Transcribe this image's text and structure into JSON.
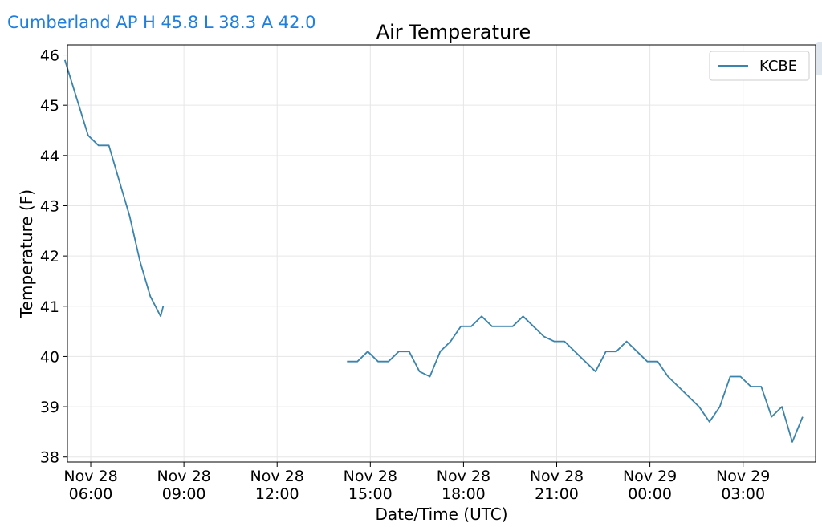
{
  "header": {
    "station_summary": "Cumberland AP H 45.8 L 38.3 A 42.0"
  },
  "colors": {
    "line": "#3a84ad",
    "grid": "#e6e6e6",
    "link": "#1f7fe0"
  },
  "chart_data": {
    "type": "line",
    "title": "Air Temperature",
    "xlabel": "Date/Time (UTC)",
    "ylabel": "Temperature (F)",
    "grid": true,
    "legend_position": "top-right",
    "ylim": [
      37.9,
      46.2
    ],
    "xlim": [
      "2020-11-28T05:15",
      "2020-11-29T05:20"
    ],
    "x_ticks": [
      {
        "line1": "Nov 28",
        "line2": "06:00",
        "at": "2020-11-28T06:00"
      },
      {
        "line1": "Nov 28",
        "line2": "09:00",
        "at": "2020-11-28T09:00"
      },
      {
        "line1": "Nov 28",
        "line2": "12:00",
        "at": "2020-11-28T12:00"
      },
      {
        "line1": "Nov 28",
        "line2": "15:00",
        "at": "2020-11-28T15:00"
      },
      {
        "line1": "Nov 28",
        "line2": "18:00",
        "at": "2020-11-28T18:00"
      },
      {
        "line1": "Nov 28",
        "line2": "21:00",
        "at": "2020-11-28T21:00"
      },
      {
        "line1": "Nov 29",
        "line2": "00:00",
        "at": "2020-11-29T00:00"
      },
      {
        "line1": "Nov 29",
        "line2": "03:00",
        "at": "2020-11-29T03:00"
      }
    ],
    "y_ticks": [
      38,
      39,
      40,
      41,
      42,
      43,
      44,
      45,
      46
    ],
    "series": [
      {
        "name": "KCBE",
        "segments": [
          [
            [
              "2020-11-28T05:10",
              45.9
            ],
            [
              "2020-11-28T05:55",
              44.4
            ],
            [
              "2020-11-28T06:15",
              44.2
            ],
            [
              "2020-11-28T06:35",
              44.2
            ],
            [
              "2020-11-28T06:55",
              43.5
            ],
            [
              "2020-11-28T07:15",
              42.8
            ],
            [
              "2020-11-28T07:35",
              41.9
            ],
            [
              "2020-11-28T07:55",
              41.2
            ],
            [
              "2020-11-28T08:15",
              40.8
            ],
            [
              "2020-11-28T08:20",
              41.0
            ]
          ],
          [
            [
              "2020-11-28T14:15",
              39.9
            ],
            [
              "2020-11-28T14:35",
              39.9
            ],
            [
              "2020-11-28T14:55",
              40.1
            ],
            [
              "2020-11-28T15:15",
              39.9
            ],
            [
              "2020-11-28T15:35",
              39.9
            ],
            [
              "2020-11-28T15:55",
              40.1
            ],
            [
              "2020-11-28T16:15",
              40.1
            ],
            [
              "2020-11-28T16:35",
              39.7
            ],
            [
              "2020-11-28T16:55",
              39.6
            ],
            [
              "2020-11-28T17:15",
              40.1
            ],
            [
              "2020-11-28T17:35",
              40.3
            ],
            [
              "2020-11-28T17:55",
              40.6
            ],
            [
              "2020-11-28T18:15",
              40.6
            ],
            [
              "2020-11-28T18:35",
              40.8
            ],
            [
              "2020-11-28T18:55",
              40.6
            ],
            [
              "2020-11-28T19:15",
              40.6
            ],
            [
              "2020-11-28T19:35",
              40.6
            ],
            [
              "2020-11-28T19:55",
              40.8
            ],
            [
              "2020-11-28T20:15",
              40.6
            ],
            [
              "2020-11-28T20:35",
              40.4
            ],
            [
              "2020-11-28T20:55",
              40.3
            ],
            [
              "2020-11-28T21:15",
              40.3
            ],
            [
              "2020-11-28T21:35",
              40.1
            ],
            [
              "2020-11-28T21:55",
              39.9
            ],
            [
              "2020-11-28T22:15",
              39.7
            ],
            [
              "2020-11-28T22:35",
              40.1
            ],
            [
              "2020-11-28T22:55",
              40.1
            ],
            [
              "2020-11-28T23:15",
              40.3
            ],
            [
              "2020-11-28T23:35",
              40.1
            ],
            [
              "2020-11-28T23:55",
              39.9
            ],
            [
              "2020-11-29T00:15",
              39.9
            ],
            [
              "2020-11-29T00:35",
              39.6
            ],
            [
              "2020-11-29T00:55",
              39.4
            ],
            [
              "2020-11-29T01:15",
              39.2
            ],
            [
              "2020-11-29T01:35",
              39.0
            ],
            [
              "2020-11-29T01:55",
              38.7
            ],
            [
              "2020-11-29T02:15",
              39.0
            ],
            [
              "2020-11-29T02:35",
              39.6
            ],
            [
              "2020-11-29T02:55",
              39.6
            ],
            [
              "2020-11-29T03:15",
              39.4
            ],
            [
              "2020-11-29T03:35",
              39.4
            ],
            [
              "2020-11-29T03:55",
              38.8
            ],
            [
              "2020-11-29T04:15",
              39.0
            ],
            [
              "2020-11-29T04:35",
              38.3
            ],
            [
              "2020-11-29T04:55",
              38.8
            ]
          ]
        ]
      }
    ]
  }
}
